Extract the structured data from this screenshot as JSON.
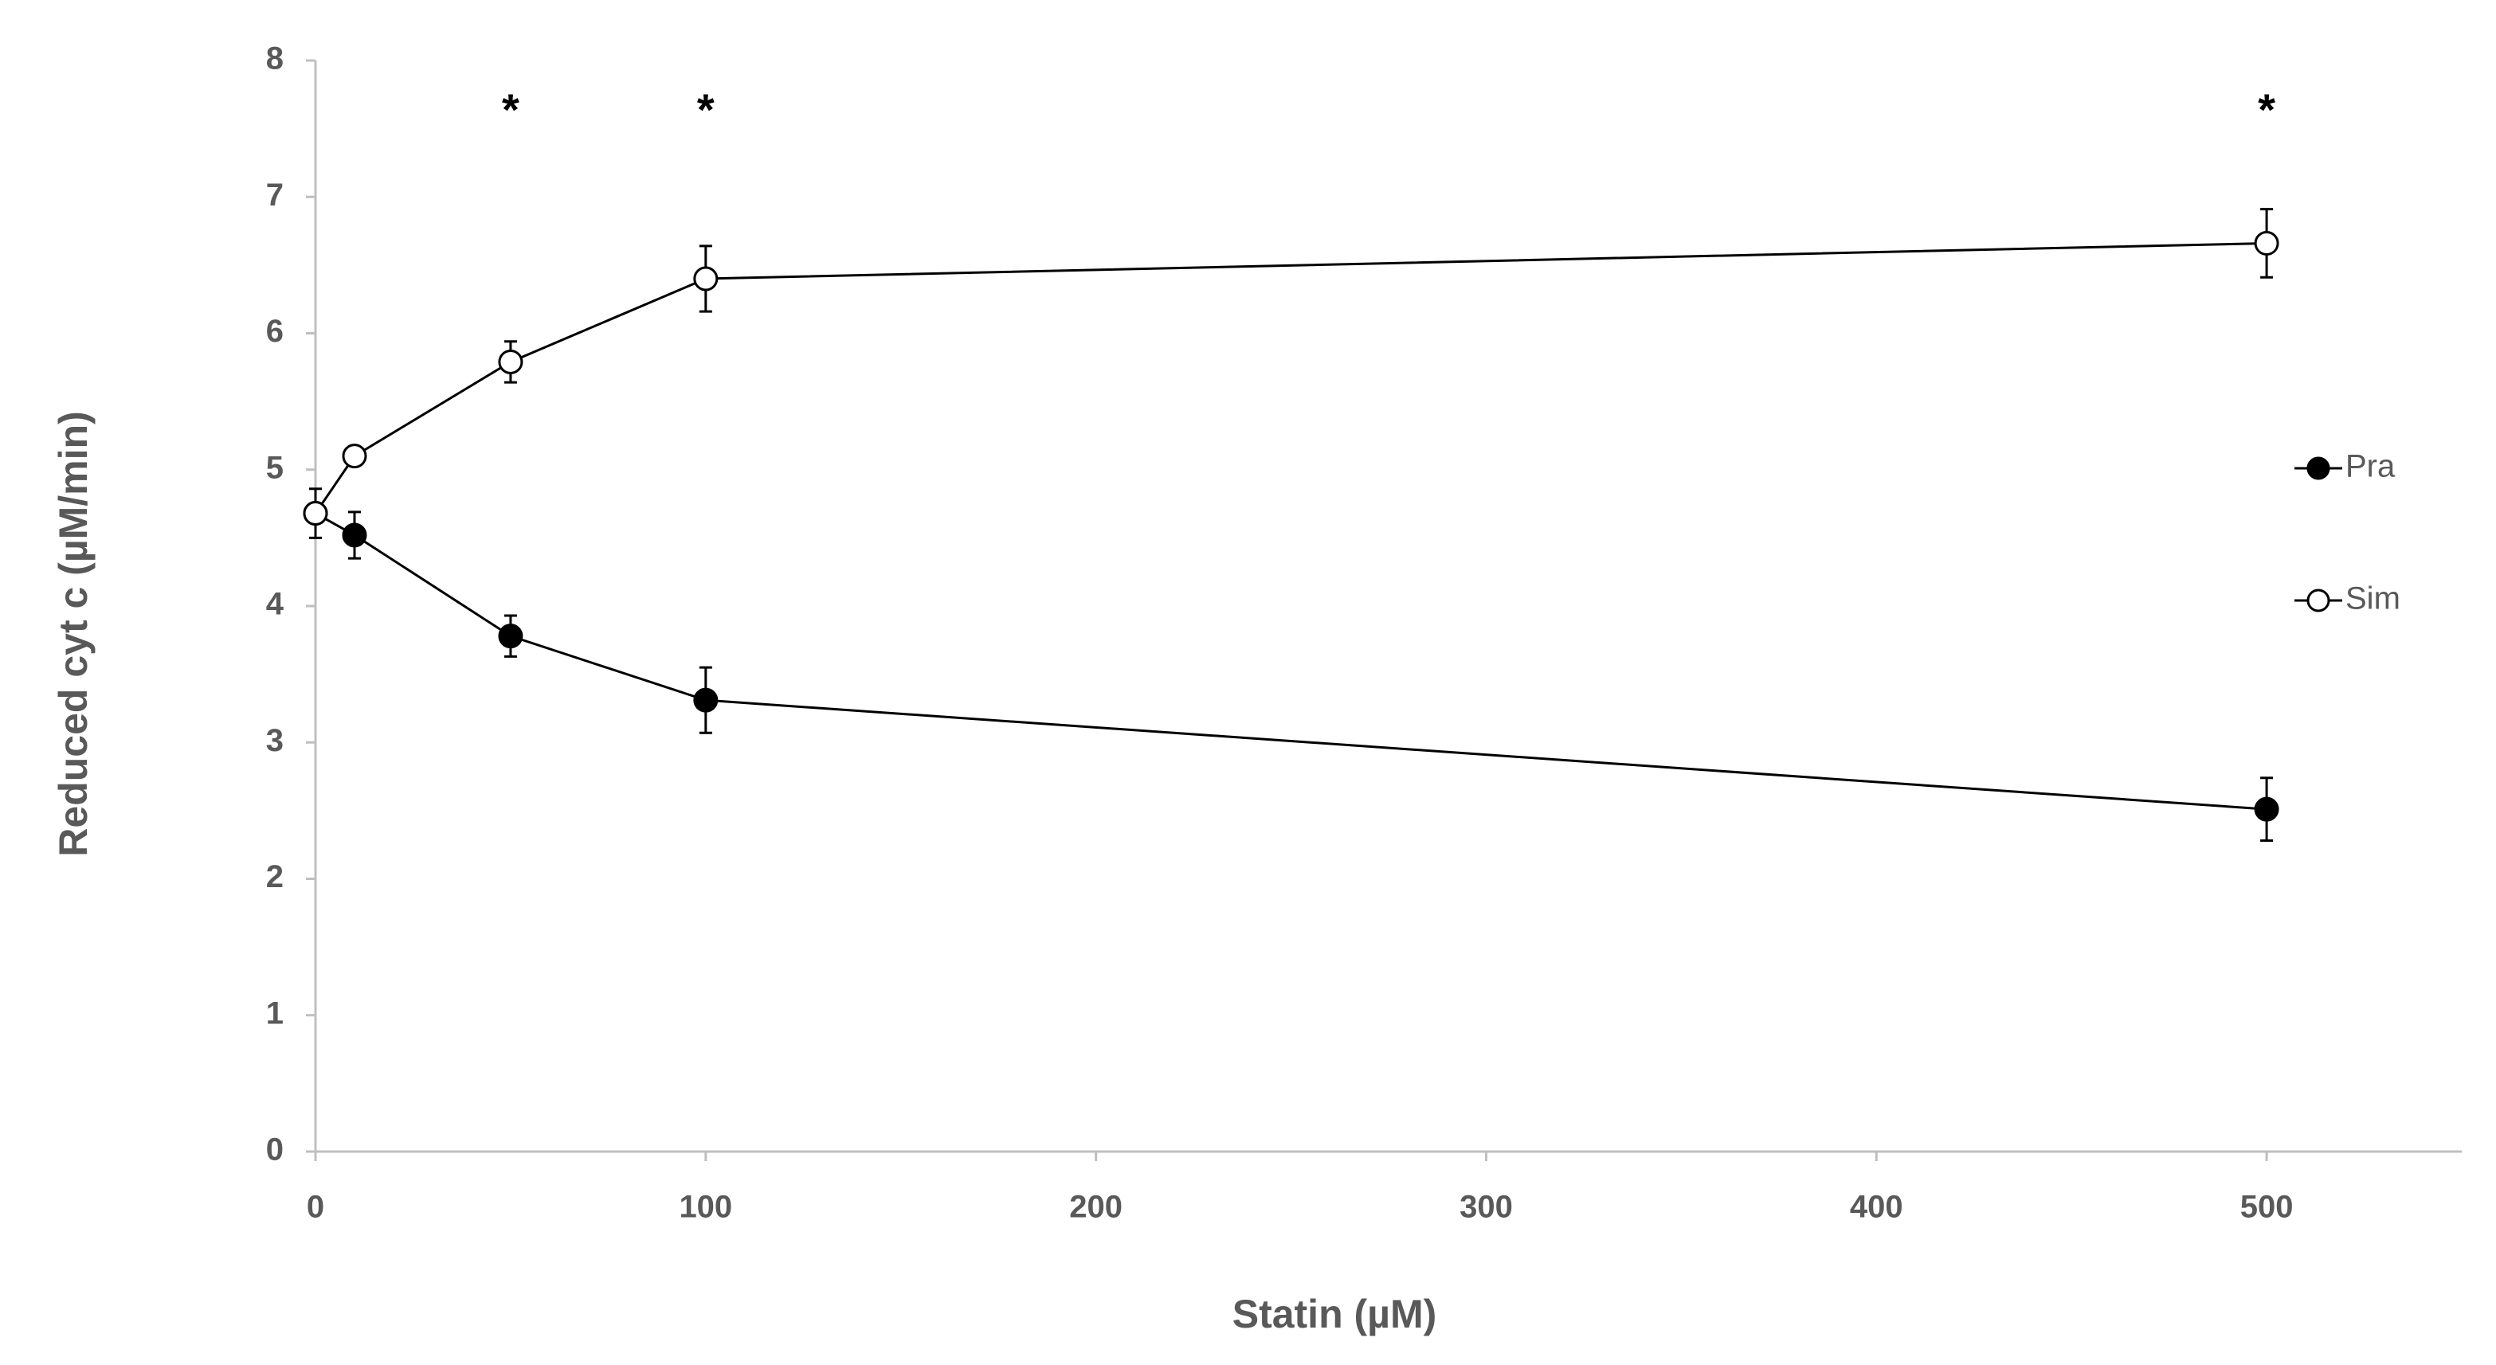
{
  "chart_data": {
    "type": "line",
    "xlabel": "Statin (µM)",
    "ylabel": "Reduced cyt c (µM/min)",
    "x": [
      0,
      10,
      50,
      100,
      500
    ],
    "series": [
      {
        "name": "Pra",
        "color": "#000000",
        "marker_fill": "#000000",
        "values": [
          4.68,
          4.52,
          3.78,
          3.31,
          2.51
        ],
        "errors": [
          0.18,
          0.17,
          0.15,
          0.24,
          0.23
        ]
      },
      {
        "name": "Sim",
        "color": "#000000",
        "marker_fill": "#ffffff",
        "values": [
          4.68,
          5.1,
          5.79,
          6.4,
          6.66
        ],
        "errors": [
          0.05,
          0.05,
          0.15,
          0.24,
          0.25
        ]
      }
    ],
    "annotations": [
      {
        "text": "*",
        "x": 50
      },
      {
        "text": "*",
        "x": 100
      },
      {
        "text": "*",
        "x": 500
      }
    ],
    "xlim": [
      0,
      550
    ],
    "xticks": [
      0,
      100,
      200,
      300,
      400,
      500
    ],
    "ylim": [
      0,
      8
    ],
    "yticks": [
      0,
      1,
      2,
      3,
      4,
      5,
      6,
      7,
      8
    ],
    "grid": false,
    "legend": "right"
  }
}
